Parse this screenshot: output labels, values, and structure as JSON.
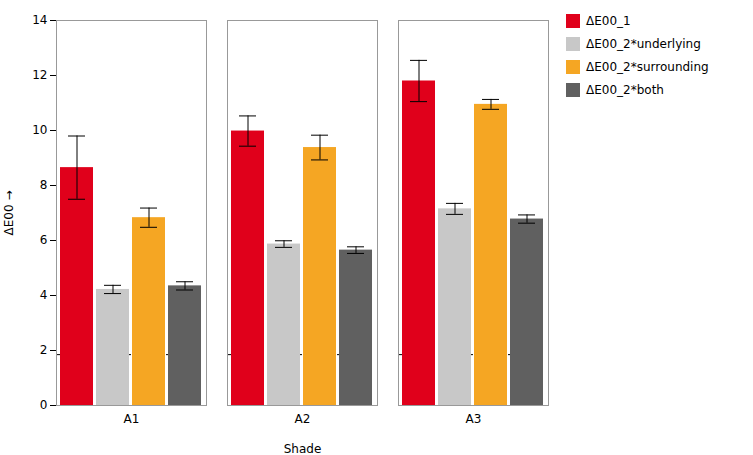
{
  "chart_data": {
    "type": "bar",
    "categories": [
      "A1",
      "A2",
      "A3"
    ],
    "series": [
      {
        "name": "ΔE00_1",
        "color": "#e0001b",
        "values": [
          8.65,
          9.98,
          11.8
        ],
        "errors": [
          1.15,
          0.55,
          0.75
        ]
      },
      {
        "name": "ΔE00_2*underlying",
        "color": "#c8c8c8",
        "values": [
          4.22,
          5.87,
          7.15
        ],
        "errors": [
          0.15,
          0.12,
          0.2
        ]
      },
      {
        "name": "ΔE00_2*surrounding",
        "color": "#f5a623",
        "values": [
          6.83,
          9.38,
          10.95
        ],
        "errors": [
          0.35,
          0.45,
          0.18
        ]
      },
      {
        "name": "ΔE00_2*both",
        "color": "#606060",
        "values": [
          4.35,
          5.65,
          6.78
        ],
        "errors": [
          0.15,
          0.12,
          0.15
        ]
      }
    ],
    "x_label": "Shade",
    "y_label": "ΔE00",
    "ylim": [
      0,
      14
    ],
    "yticks": [
      0,
      2,
      4,
      6,
      8,
      10,
      12,
      14
    ],
    "hline": {
      "value": 1.85,
      "line_style": "dashed"
    },
    "grid": false,
    "legend": "right"
  }
}
